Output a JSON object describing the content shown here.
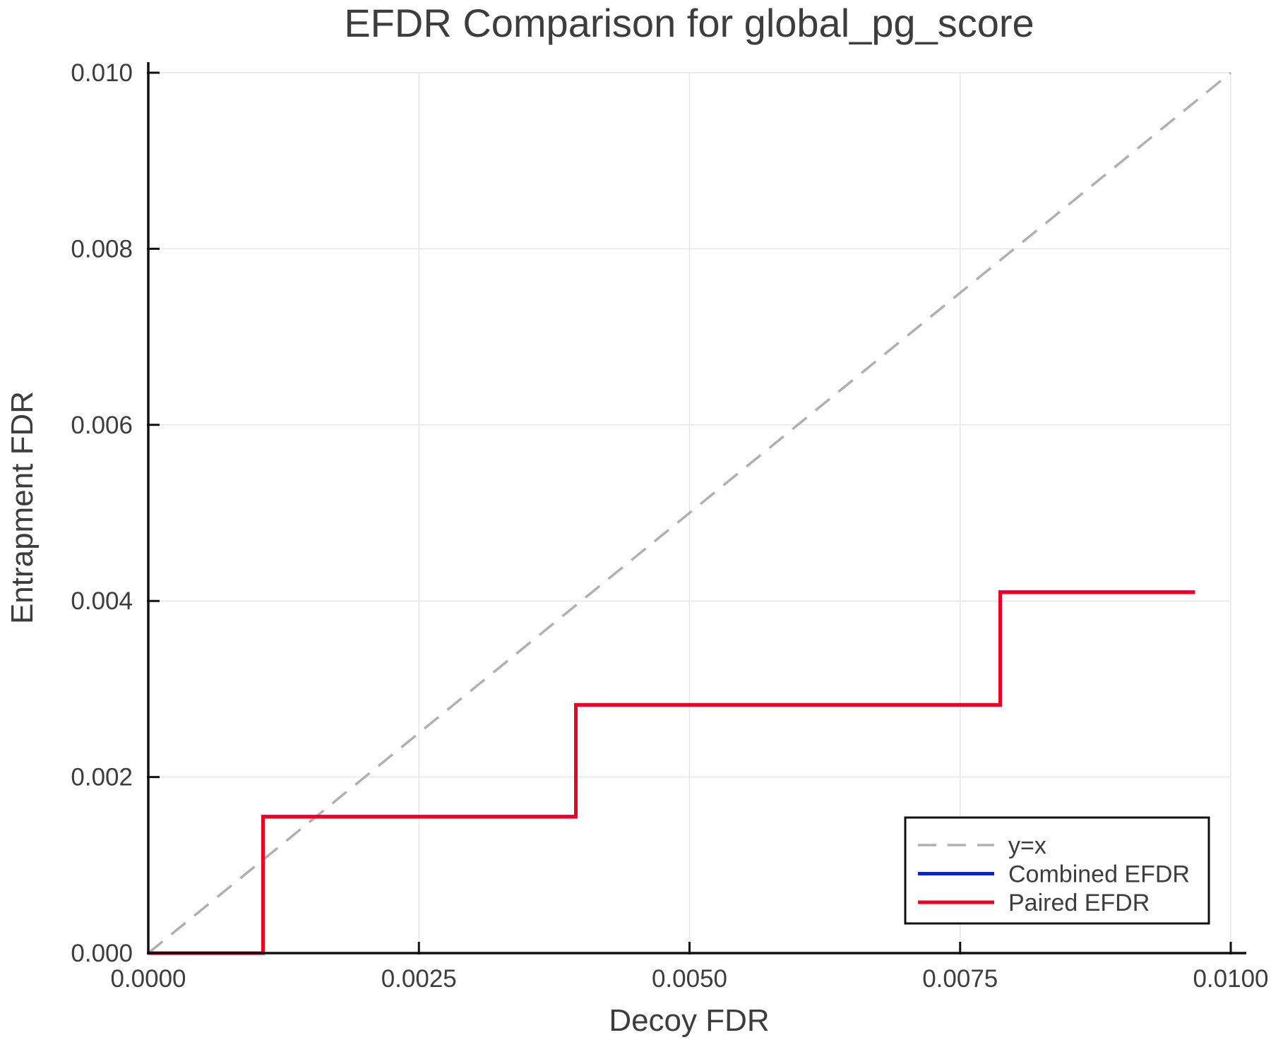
{
  "chart_data": {
    "type": "line",
    "title": "EFDR Comparison for global_pg_score",
    "xlabel": "Decoy FDR",
    "ylabel": "Entrapment FDR",
    "xlim": [
      0.0,
      0.01
    ],
    "ylim": [
      0.0,
      0.01
    ],
    "grid": true,
    "legend_position": "lower right",
    "xticks": {
      "values": [
        0.0,
        0.0025,
        0.005,
        0.0075,
        0.01
      ],
      "labels": [
        "0.0000",
        "0.0025",
        "0.0050",
        "0.0075",
        "0.0100"
      ]
    },
    "yticks": {
      "values": [
        0.0,
        0.002,
        0.004,
        0.006,
        0.008,
        0.01
      ],
      "labels": [
        "0.000",
        "0.002",
        "0.004",
        "0.006",
        "0.008",
        "0.010"
      ]
    },
    "series": [
      {
        "name": "y=x",
        "color": "#b0b0b0",
        "style": "dashed",
        "width": 3.5,
        "x": [
          0.0,
          0.01
        ],
        "y": [
          0.0,
          0.01
        ]
      },
      {
        "name": "Combined EFDR",
        "color": "#0022ee",
        "style": "solid",
        "width": 5,
        "x": [
          0.0,
          0.00106,
          0.00106,
          0.00395,
          0.00395,
          0.00787,
          0.00787,
          0.00967
        ],
        "y": [
          0.0,
          0.0,
          0.00155,
          0.00155,
          0.00282,
          0.00282,
          0.0041,
          0.0041
        ]
      },
      {
        "name": "Paired EFDR",
        "color": "#ee0022",
        "style": "solid",
        "width": 5,
        "x": [
          0.0,
          0.00106,
          0.00106,
          0.00395,
          0.00395,
          0.00787,
          0.00787,
          0.00967
        ],
        "y": [
          0.0,
          0.0,
          0.00155,
          0.00155,
          0.00282,
          0.00282,
          0.0041,
          0.0041
        ]
      }
    ],
    "colors": {
      "text": "#3d3d3d",
      "grid": "#e7e7e7",
      "spine": "#111111",
      "background": "#ffffff",
      "legend_border": "#111111"
    }
  }
}
